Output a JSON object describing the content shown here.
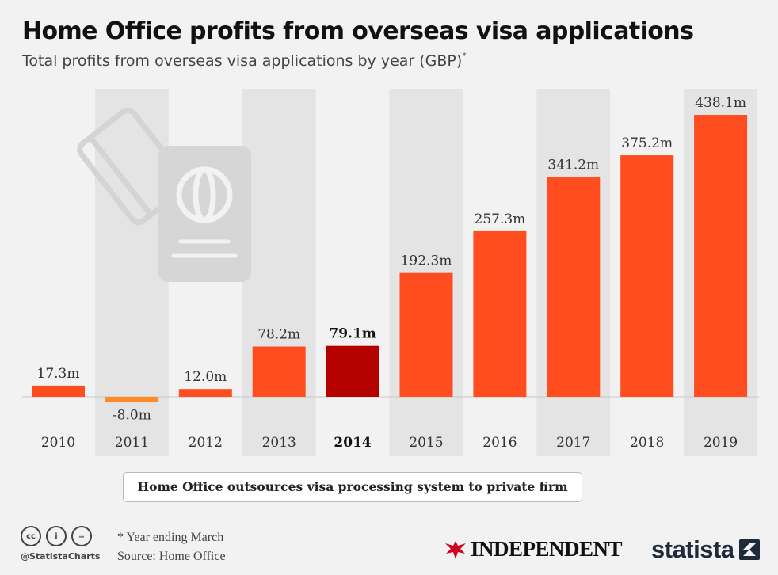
{
  "header": {
    "title": "Home Office profits from overseas visa applications",
    "subtitle": "Total profits from overseas visa applications by year (GBP)",
    "subtitle_mark": "*"
  },
  "chart_data": {
    "type": "bar",
    "title": "Home Office profits from overseas visa applications",
    "subtitle": "Total profits from overseas visa applications by year (GBP)*",
    "categories": [
      "2010",
      "2011",
      "2012",
      "2013",
      "2014",
      "2015",
      "2016",
      "2017",
      "2018",
      "2019"
    ],
    "values": [
      17.3,
      -8.0,
      12.0,
      78.2,
      79.1,
      192.3,
      257.3,
      341.2,
      375.2,
      438.1
    ],
    "value_labels": [
      "17.3m",
      "-8.0m",
      "12.0m",
      "78.2m",
      "79.1m",
      "192.3m",
      "257.3m",
      "341.2m",
      "375.2m",
      "438.1m"
    ],
    "highlight_category": "2014",
    "ylim": [
      -20,
      440
    ],
    "grid": false,
    "colors": {
      "positive": "#ff4d1f",
      "negative": "#ff8a24",
      "highlight": "#b50000",
      "column_band": "#e4e4e4",
      "baseline": "#c8c8c8"
    }
  },
  "annotation": {
    "text": "Home Office outsources visa processing system to private firm"
  },
  "footer": {
    "note": "* Year ending March",
    "source": "Source: Home Office",
    "handle": "@StatistaCharts",
    "cc_icons": [
      {
        "icon": "cc-icon",
        "text": "cc"
      },
      {
        "icon": "by-icon",
        "text": "i"
      },
      {
        "icon": "nd-icon",
        "text": "="
      }
    ],
    "brand_independent": "INDEPENDENT",
    "brand_statista": "statista"
  }
}
